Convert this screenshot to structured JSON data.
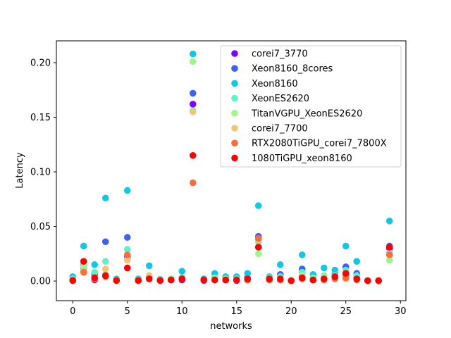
{
  "chart_data": {
    "type": "scatter",
    "xlabel": "networks",
    "ylabel": "Latency",
    "xlim": [
      -1.5,
      30.5
    ],
    "ylim": [
      -0.018,
      0.22
    ],
    "xticks": [
      0,
      5,
      10,
      15,
      20,
      25,
      30
    ],
    "yticks": [
      0.0,
      0.05,
      0.1,
      0.15,
      0.2
    ],
    "ytick_labels": [
      "0.00",
      "0.05",
      "0.10",
      "0.15",
      "0.20"
    ],
    "grid": false,
    "legend_position": "top-right",
    "x": [
      0,
      1,
      2,
      3,
      4,
      5,
      6,
      7,
      8,
      9,
      10,
      11,
      12,
      13,
      14,
      15,
      16,
      17,
      18,
      19,
      20,
      21,
      22,
      23,
      24,
      25,
      26,
      27,
      28,
      29
    ],
    "series": [
      {
        "name": "corei7_3770",
        "color": "#7f00ff",
        "values": [
          0.0005,
          0.015,
          0.001,
          0.005,
          0.0005,
          0.022,
          0.0005,
          0.004,
          0.0005,
          0.001,
          0.001,
          0.162,
          0.0005,
          0.001,
          0.001,
          0.0005,
          0.001,
          0.031,
          0.001,
          0.001,
          0.0003,
          0.004,
          0.001,
          0.002,
          0.003,
          0.005,
          0.003,
          0.0003,
          0.0003,
          0.03
        ]
      },
      {
        "name": "Xeon8160_8cores",
        "color": "#3f61fa",
        "values": [
          0.0008,
          0.012,
          0.006,
          0.036,
          0.001,
          0.04,
          0.001,
          0.004,
          0.0008,
          0.001,
          0.003,
          0.172,
          0.001,
          0.003,
          0.002,
          0.001,
          0.003,
          0.041,
          0.002,
          0.006,
          0.0003,
          0.011,
          0.003,
          0.004,
          0.006,
          0.013,
          0.007,
          0.0003,
          0.0003,
          0.032
        ]
      },
      {
        "name": "Xeon8160",
        "color": "#10c8e6",
        "values": [
          0.004,
          0.032,
          0.015,
          0.076,
          0.002,
          0.083,
          0.002,
          0.014,
          0.0015,
          0.002,
          0.009,
          0.208,
          0.002,
          0.007,
          0.004,
          0.004,
          0.007,
          0.069,
          0.004,
          0.015,
          0.0005,
          0.024,
          0.006,
          0.012,
          0.01,
          0.032,
          0.018,
          0.0005,
          0.0005,
          0.055
        ]
      },
      {
        "name": "XeonES2620",
        "color": "#5ef2c8",
        "values": [
          0.002,
          0.016,
          0.008,
          0.018,
          0.001,
          0.029,
          0.001,
          0.005,
          0.001,
          0.002,
          0.003,
          0.156,
          0.001,
          0.003,
          0.002,
          0.002,
          0.002,
          0.036,
          0.003,
          0.004,
          0.0005,
          0.008,
          0.003,
          0.005,
          0.005,
          0.01,
          0.005,
          0.0005,
          0.0005,
          0.026
        ]
      },
      {
        "name": "TitanVGPU_XeonES2620",
        "color": "#9ef58e",
        "values": [
          0.001,
          0.013,
          0.003,
          0.006,
          0.001,
          0.02,
          0.001,
          0.005,
          0.001,
          0.002,
          0.002,
          0.201,
          0.001,
          0.002,
          0.002,
          0.001,
          0.002,
          0.025,
          0.002,
          0.002,
          0.0005,
          0.005,
          0.002,
          0.004,
          0.004,
          0.004,
          0.002,
          0.0005,
          0.0005,
          0.019
        ]
      },
      {
        "name": "corei7_7700",
        "color": "#f0c576",
        "values": [
          0.0008,
          0.009,
          0.002,
          0.011,
          0.0006,
          0.019,
          0.0006,
          0.005,
          0.0006,
          0.001,
          0.002,
          0.155,
          0.001,
          0.001,
          0.001,
          0.001,
          0.001,
          0.038,
          0.001,
          0.002,
          0.0003,
          0.003,
          0.001,
          0.002,
          0.003,
          0.002,
          0.002,
          0.0003,
          0.0003,
          0.024
        ]
      },
      {
        "name": "RTX2080TiGPU_corei7_7800X",
        "color": "#ff6c3b",
        "values": [
          0.0005,
          0.008,
          0.002,
          0.004,
          0.0005,
          0.024,
          0.0005,
          0.002,
          0.0005,
          0.001,
          0.002,
          0.09,
          0.001,
          0.001,
          0.001,
          0.001,
          0.001,
          0.039,
          0.001,
          0.001,
          0.0003,
          0.002,
          0.001,
          0.001,
          0.002,
          0.003,
          0.001,
          0.0003,
          0.0003,
          0.024
        ]
      },
      {
        "name": "1080TiGPU_xeon8160",
        "color": "#ff0000",
        "values": [
          0.0005,
          0.018,
          0.003,
          0.005,
          0.0005,
          0.012,
          0.0005,
          0.002,
          0.0005,
          0.001,
          0.002,
          0.115,
          0.001,
          0.001,
          0.001,
          0.001,
          0.002,
          0.031,
          0.002,
          0.002,
          0.0003,
          0.003,
          0.001,
          0.002,
          0.004,
          0.007,
          0.002,
          0.0003,
          0.0003,
          0.031
        ]
      }
    ]
  }
}
